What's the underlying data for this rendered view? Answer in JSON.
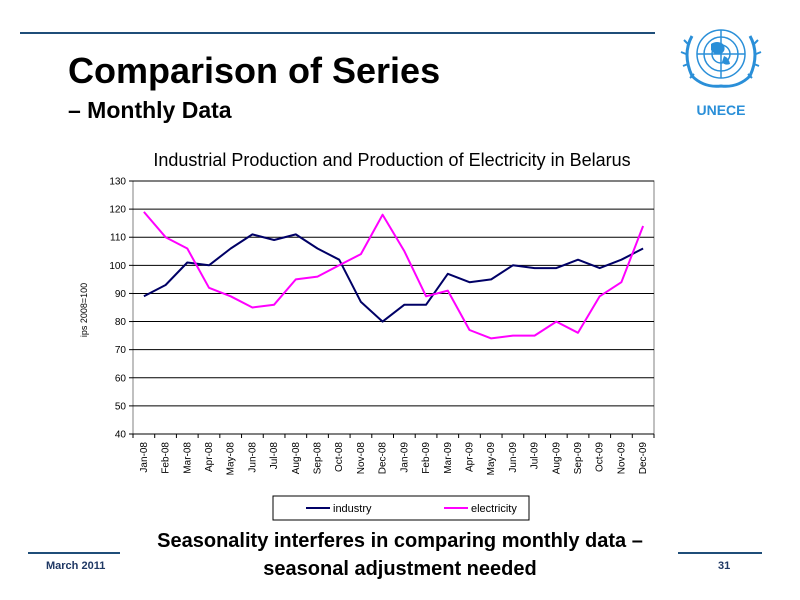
{
  "slide": {
    "title": "Comparison of Series",
    "subtitle": "– Monthly Data",
    "caption": "Seasonality interferes in comparing monthly data – seasonal adjustment needed",
    "footer_date": "March 2011",
    "page_number": "31",
    "logo_text": "UNECE",
    "accent_color": "#1f4e79",
    "logo_color": "#2a8fd8"
  },
  "chart_data": {
    "type": "line",
    "title": "Industrial Production and Production of Electricity in Belarus",
    "ylabel": "ips 2008=100",
    "xlabel": "",
    "ylim": [
      40,
      130
    ],
    "yticks": [
      40,
      50,
      60,
      70,
      80,
      90,
      100,
      110,
      120,
      130
    ],
    "grid": true,
    "legend": "bottom",
    "categories": [
      "Jan-08",
      "Feb-08",
      "Mar-08",
      "Apr-08",
      "May-08",
      "Jun-08",
      "Jul-08",
      "Aug-08",
      "Sep-08",
      "Oct-08",
      "Nov-08",
      "Dec-08",
      "Jan-09",
      "Feb-09",
      "Mar-09",
      "Apr-09",
      "May-09",
      "Jun-09",
      "Jul-09",
      "Aug-09",
      "Sep-09",
      "Oct-09",
      "Nov-09",
      "Dec-09"
    ],
    "series": [
      {
        "name": "industry",
        "color": "#000066",
        "values": [
          89,
          93,
          101,
          100,
          106,
          111,
          109,
          111,
          106,
          102,
          87,
          80,
          86,
          86,
          97,
          94,
          95,
          100,
          99,
          99,
          102,
          99,
          102,
          106
        ]
      },
      {
        "name": "electricity",
        "color": "#ff00ff",
        "values": [
          119,
          110,
          106,
          92,
          89,
          85,
          86,
          95,
          96,
          100,
          104,
          118,
          105,
          89,
          91,
          77,
          74,
          75,
          75,
          80,
          76,
          89,
          94,
          114
        ]
      }
    ]
  }
}
